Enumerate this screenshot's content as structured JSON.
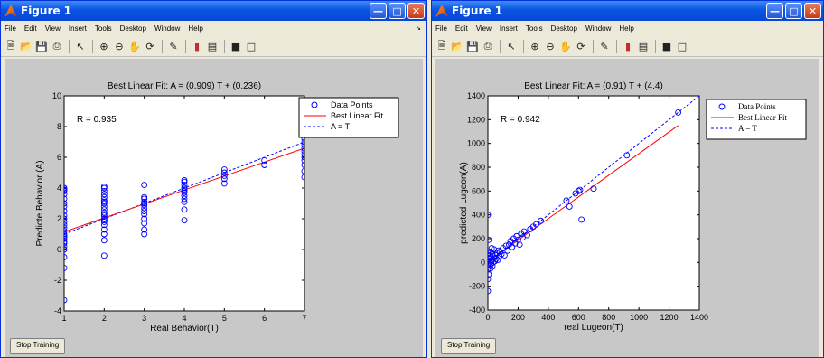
{
  "windows": [
    {
      "title": "Figure 1",
      "menu": [
        "File",
        "Edit",
        "View",
        "Insert",
        "Tools",
        "Desktop",
        "Window",
        "Help"
      ],
      "status_button": "Stop Training",
      "chart_data": {
        "type": "scatter",
        "title": "Best Linear Fit:  A = (0.909) T + (0.236)",
        "xlabel": "Real Behavior(T)",
        "ylabel": "Predicte Behavior (A)",
        "xlim": [
          1,
          7
        ],
        "ylim": [
          -4,
          10
        ],
        "xticks": [
          "1",
          "2",
          "3",
          "4",
          "5",
          "6",
          "7"
        ],
        "yticks": [
          "-4",
          "-2",
          "0",
          "2",
          "4",
          "6",
          "8",
          "10"
        ],
        "annotation": "R = 0.935",
        "legend": [
          "Data Points",
          "Best Linear Fit",
          "A = T"
        ],
        "legend_position": "outside-top-right",
        "fit_line": {
          "slope": 0.909,
          "intercept": 0.236
        },
        "identity_line": {
          "slope": 1,
          "intercept": 0
        },
        "points": {
          "x": [
            1,
            1,
            1,
            1,
            1,
            1,
            1,
            1,
            1,
            1,
            1,
            1,
            1,
            1,
            1,
            1,
            1,
            1,
            1,
            1,
            1,
            1,
            1,
            1,
            1,
            2,
            2,
            2,
            2,
            2,
            2,
            2,
            2,
            2,
            2,
            2,
            2,
            2,
            2,
            2,
            2,
            2,
            2,
            2,
            2,
            2,
            3,
            3,
            3,
            3,
            3,
            3,
            3,
            3,
            3,
            3,
            3,
            3,
            3,
            4,
            4,
            4,
            4,
            4,
            4,
            4,
            4,
            4,
            4,
            4,
            4,
            5,
            5,
            5,
            5,
            5,
            6,
            6,
            7,
            7,
            7,
            7,
            7,
            7,
            7,
            7,
            7,
            7,
            7,
            7,
            7,
            7,
            7
          ],
          "y": [
            -3.3,
            -1.2,
            -0.5,
            0,
            0.2,
            0.4,
            0.5,
            0.7,
            0.8,
            0.9,
            1.0,
            1.2,
            1.4,
            1.6,
            1.8,
            2.0,
            2.2,
            2.5,
            2.8,
            3.0,
            3.3,
            3.6,
            3.8,
            3.9,
            4.0,
            -0.4,
            0.6,
            1.0,
            1.3,
            1.6,
            1.8,
            2.0,
            2.2,
            2.4,
            2.6,
            2.8,
            3.0,
            3.2,
            3.4,
            3.6,
            3.8,
            4.0,
            4.1,
            2.3,
            1.9,
            3.1,
            1.0,
            1.3,
            1.7,
            2.0,
            2.3,
            2.5,
            2.7,
            2.9,
            3.0,
            3.1,
            3.3,
            3.4,
            4.2,
            1.9,
            2.6,
            3.1,
            3.3,
            3.5,
            3.7,
            3.8,
            3.9,
            4.0,
            4.2,
            4.4,
            4.5,
            4.3,
            4.6,
            4.8,
            5.0,
            5.2,
            5.5,
            5.8,
            4.7,
            5.1,
            5.5,
            5.8,
            6.0,
            6.2,
            6.4,
            6.6,
            6.8,
            7.0,
            7.2,
            7.5,
            7.8,
            8.1,
            8.6
          ]
        }
      }
    },
    {
      "title": "Figure 1",
      "menu": [
        "File",
        "Edit",
        "View",
        "Insert",
        "Tools",
        "Desktop",
        "Window",
        "Help"
      ],
      "status_button": "Stop Training",
      "chart_data": {
        "type": "scatter",
        "title": "Best Linear Fit:  A = (0.91) T + (4.4)",
        "xlabel": "real Lugeon(T)",
        "ylabel": "predicted Lugeon(A)",
        "xlim": [
          0,
          1400
        ],
        "ylim": [
          -400,
          1400
        ],
        "xticks": [
          "0",
          "200",
          "400",
          "600",
          "800",
          "1000",
          "1200",
          "1400"
        ],
        "yticks": [
          "-400",
          "-200",
          "0",
          "200",
          "400",
          "600",
          "800",
          "1000",
          "1200",
          "1400"
        ],
        "annotation": "R = 0.942",
        "legend": [
          "Data Points",
          "Best Linear Fit",
          "A = T"
        ],
        "legend_position": "outside-top-right",
        "fit_line": {
          "slope": 0.91,
          "intercept": 4.4
        },
        "identity_line": {
          "slope": 1,
          "intercept": 0
        },
        "points": {
          "x": [
            0,
            0,
            0,
            0,
            0,
            0,
            5,
            5,
            8,
            10,
            10,
            12,
            15,
            18,
            20,
            20,
            22,
            25,
            28,
            30,
            30,
            35,
            40,
            40,
            45,
            50,
            55,
            60,
            65,
            70,
            75,
            80,
            90,
            100,
            110,
            120,
            130,
            140,
            150,
            160,
            170,
            180,
            190,
            200,
            210,
            220,
            230,
            240,
            260,
            280,
            300,
            320,
            350,
            520,
            540,
            580,
            600,
            610,
            620,
            700,
            920,
            1260
          ],
          "y": [
            -240,
            -140,
            -60,
            20,
            80,
            400,
            -100,
            190,
            30,
            0,
            60,
            -20,
            40,
            -50,
            10,
            90,
            -10,
            120,
            20,
            -30,
            70,
            0,
            40,
            110,
            10,
            60,
            30,
            80,
            20,
            100,
            50,
            90,
            70,
            120,
            60,
            140,
            100,
            150,
            180,
            130,
            200,
            160,
            220,
            190,
            150,
            240,
            210,
            260,
            230,
            280,
            300,
            320,
            350,
            520,
            470,
            580,
            600,
            610,
            360,
            620,
            900,
            1260
          ]
        }
      }
    }
  ]
}
